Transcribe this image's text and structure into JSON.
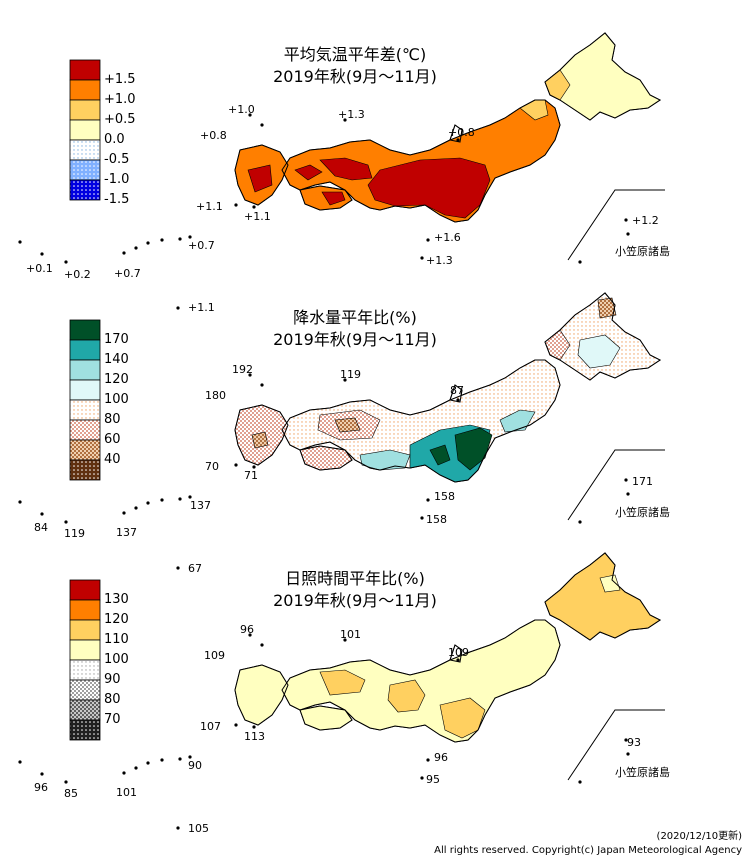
{
  "colors": {
    "temperature": [
      "#c00000",
      "#ff7f00",
      "#ffd060",
      "#ffffc0",
      "#dfefff",
      "#a0c8ff",
      "#0000e0"
    ],
    "precipitation": [
      "#005028",
      "#20a8a8",
      "#a0e0e0",
      "#e0f8f8",
      "#fff8e8",
      "#f0c8b8",
      "#c08060",
      "#603010"
    ],
    "sunshine": [
      "#c00000",
      "#ff7f00",
      "#ffd060",
      "#ffffc0",
      "#f0f0f0",
      "#d0d0d0",
      "#909090",
      "#303030"
    ],
    "land_stroke": "#000000"
  },
  "maps": [
    {
      "id": "temperature",
      "title_line1": "平均気温平年差(℃)",
      "title_line2": "2019年秋(9月～11月)",
      "legend": [
        "+1.5",
        "+1.0",
        "+0.5",
        "0.0",
        "-0.5",
        "-1.0",
        "-1.5"
      ],
      "annotations": [
        "+1.0",
        "+1.3",
        "+0.8",
        "+0.8",
        "+1.1",
        "+1.1",
        "+1.6",
        "+1.3",
        "+0.1",
        "+0.2",
        "+0.7",
        "+0.7",
        "+1.1",
        "+1.2"
      ],
      "ogasawara_label": "小笠原諸島"
    },
    {
      "id": "precipitation",
      "title_line1": "降水量平年比(%)",
      "title_line2": "2019年秋(9月～11月)",
      "legend": [
        "170",
        "140",
        "120",
        "100",
        "80",
        "60",
        "40"
      ],
      "annotations": [
        "192",
        "119",
        "180",
        "87",
        "70",
        "71",
        "158",
        "158",
        "84",
        "119",
        "137",
        "137",
        "67",
        "171"
      ],
      "ogasawara_label": "小笠原諸島"
    },
    {
      "id": "sunshine",
      "title_line1": "日照時間平年比(%)",
      "title_line2": "2019年秋(9月～11月)",
      "legend": [
        "130",
        "120",
        "110",
        "100",
        "90",
        "80",
        "70"
      ],
      "annotations": [
        "96",
        "101",
        "109",
        "109",
        "107",
        "113",
        "96",
        "95",
        "96",
        "85",
        "101",
        "90",
        "105",
        "93"
      ],
      "ogasawara_label": "小笠原諸島"
    }
  ],
  "footer": {
    "updated": "(2020/12/10更新)",
    "copyright": "All rights reserved. Copyright(c) Japan Meteorological Agency"
  }
}
